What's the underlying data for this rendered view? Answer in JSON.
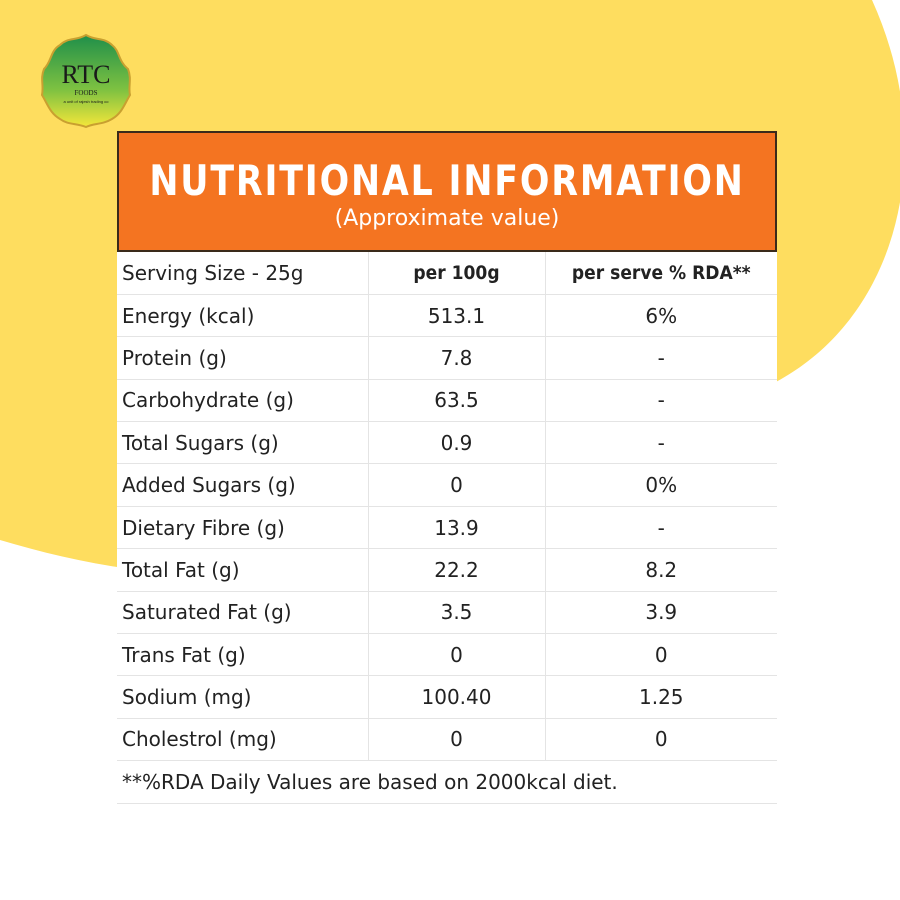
{
  "logo": {
    "name": "RTC",
    "tagline": "FOODS",
    "subline": "a unit of rajesh trading co"
  },
  "header": {
    "title": "NUTRITIONAL INFORMATION",
    "subtitle": "(Approximate value)"
  },
  "table": {
    "columns": [
      "Serving Size - 25g",
      "per 100g",
      "per serve % RDA**"
    ],
    "rows": [
      [
        "Energy (kcal)",
        "513.1",
        "6%"
      ],
      [
        "Protein (g)",
        "7.8",
        "-"
      ],
      [
        "Carbohydrate (g)",
        "63.5",
        "-"
      ],
      [
        "Total Sugars (g)",
        "0.9",
        "-"
      ],
      [
        "Added Sugars (g)",
        "0",
        "0%"
      ],
      [
        "Dietary Fibre (g)",
        "13.9",
        "-"
      ],
      [
        "Total Fat (g)",
        "22.2",
        "8.2"
      ],
      [
        "Saturated Fat (g)",
        "3.5",
        "3.9"
      ],
      [
        "Trans Fat (g)",
        "0",
        "0"
      ],
      [
        "Sodium (mg)",
        "100.40",
        "1.25"
      ],
      [
        "Cholestrol (mg)",
        "0",
        "0"
      ]
    ],
    "footnote": "**%RDA Daily Values are based on 2000kcal diet."
  }
}
